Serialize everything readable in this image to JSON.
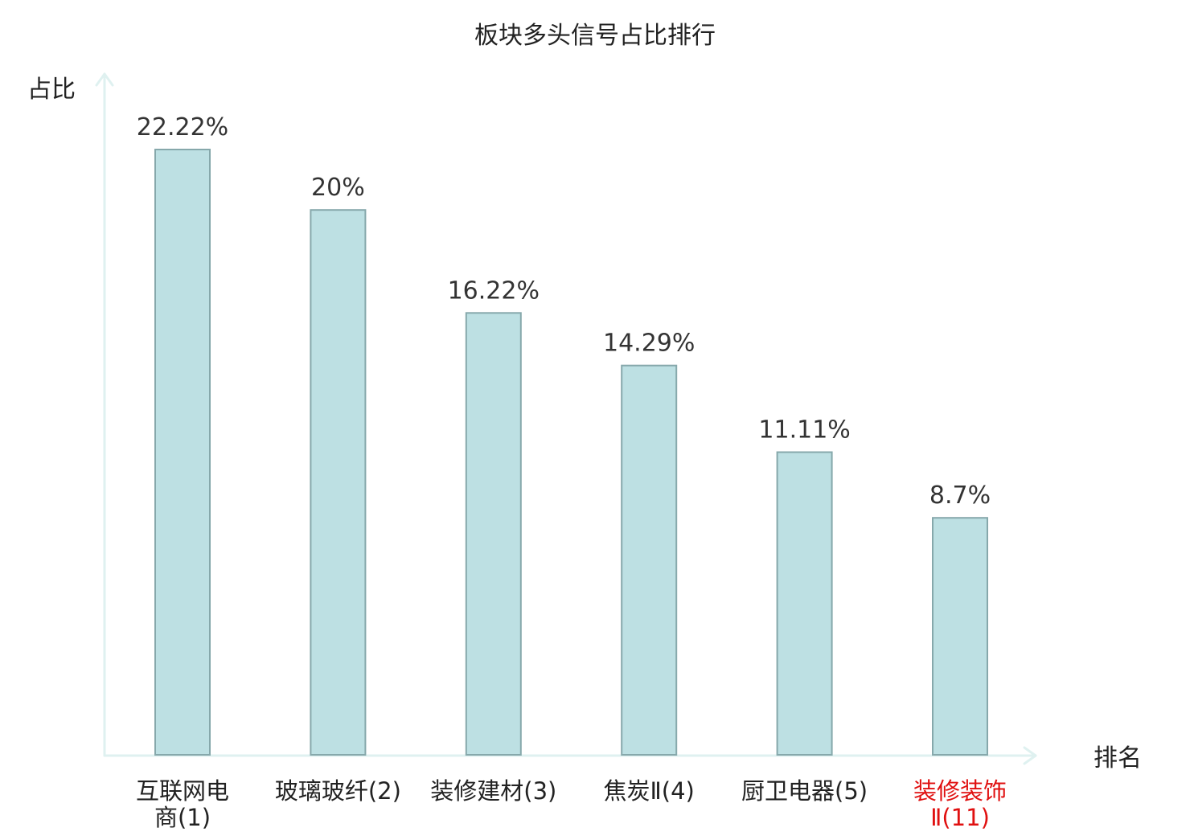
{
  "chart_data": {
    "type": "bar",
    "title": "板块多头信号占比排行",
    "xlabel": "排名",
    "ylabel": "占比",
    "categories": [
      [
        "互联网电",
        "商(1)"
      ],
      [
        "玻璃玻纤(2)"
      ],
      [
        "装修建材(3)"
      ],
      [
        "焦炭Ⅱ(4)"
      ],
      [
        "厨卫电器(5)"
      ],
      [
        "装修装饰",
        "Ⅱ(11)"
      ]
    ],
    "values": [
      22.22,
      20,
      16.22,
      14.29,
      11.11,
      8.7
    ],
    "value_labels": [
      "22.22%",
      "20%",
      "16.22%",
      "14.29%",
      "11.11%",
      "8.7%"
    ],
    "highlight_index": 5,
    "ylim": [
      0,
      22.22
    ],
    "grid": false,
    "legend": "none"
  },
  "colors": {
    "bar_fill": "#bde0e3",
    "bar_stroke": "#86a8ab",
    "axis": "#dff1f0",
    "text": "#333333",
    "highlight_text": "#e01010"
  }
}
